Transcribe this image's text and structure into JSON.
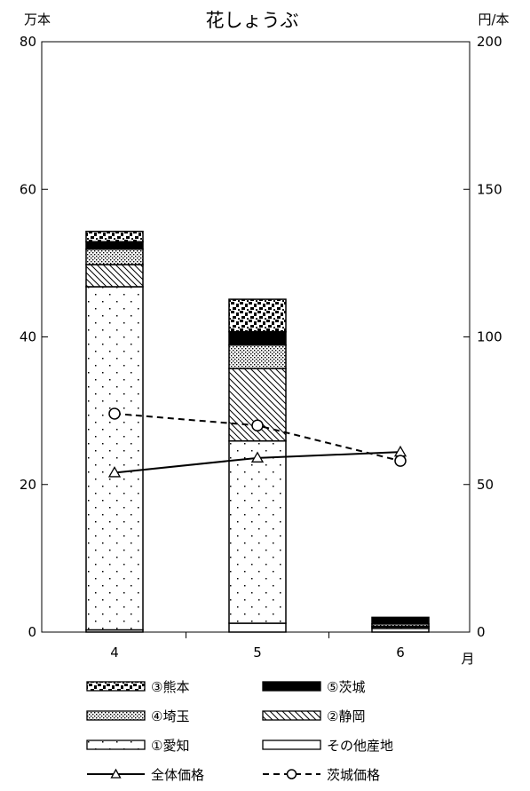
{
  "chart_data": {
    "type": "bar",
    "title": "花しょうぶ",
    "xlabel": "月",
    "ylabel_left": "万本",
    "ylabel_right": "円/本",
    "categories": [
      "4",
      "5",
      "6"
    ],
    "ylim_left": [
      0,
      80
    ],
    "ylim_right": [
      0,
      200
    ],
    "yticks_left": [
      "0",
      "20",
      "40",
      "60",
      "80"
    ],
    "yticks_right": [
      "0",
      "50",
      "100",
      "150",
      "200"
    ],
    "grid": false,
    "stack_order": [
      "その他産地",
      "①愛知",
      "②静岡",
      "④埼玉",
      "⑤茨城",
      "③熊本"
    ],
    "series": [
      {
        "name": "その他産地",
        "pattern": "plain",
        "values": [
          0.3,
          1.2,
          0.5
        ]
      },
      {
        "name": "①愛知",
        "pattern": "dots",
        "values": [
          46.5,
          24.7,
          0.2
        ]
      },
      {
        "name": "②静岡",
        "pattern": "hatch",
        "values": [
          3.0,
          9.8,
          0.1
        ]
      },
      {
        "name": "④埼玉",
        "pattern": "fine",
        "values": [
          2.1,
          3.2,
          0.3
        ]
      },
      {
        "name": "⑤茨城",
        "pattern": "solid",
        "values": [
          1.0,
          1.8,
          0.9
        ]
      },
      {
        "name": "③熊本",
        "pattern": "blotch",
        "values": [
          1.4,
          4.4,
          0.0
        ]
      }
    ],
    "lines": [
      {
        "name": "全体価格",
        "axis": "right",
        "marker": "triangle",
        "dash": false,
        "values": [
          54,
          59,
          61
        ]
      },
      {
        "name": "茨城価格",
        "axis": "right",
        "marker": "circle",
        "dash": true,
        "values": [
          74,
          70,
          58
        ]
      }
    ],
    "legend_order": [
      "③熊本",
      "⑤茨城",
      "④埼玉",
      "②静岡",
      "①愛知",
      "その他産地",
      "全体価格",
      "茨城価格"
    ],
    "legend_position": "bottom"
  }
}
